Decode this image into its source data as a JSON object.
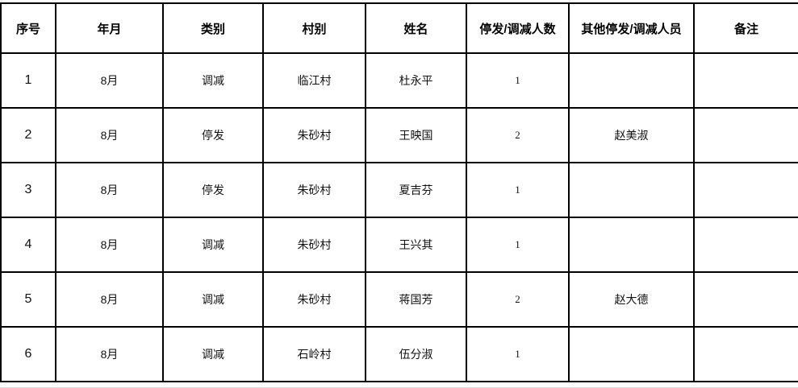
{
  "table": {
    "columns": [
      {
        "key": "seq",
        "label": "序号"
      },
      {
        "key": "month",
        "label": "年月"
      },
      {
        "key": "category",
        "label": "类别"
      },
      {
        "key": "village",
        "label": "村别"
      },
      {
        "key": "name",
        "label": "姓名"
      },
      {
        "key": "count",
        "label": "停发/调减人数"
      },
      {
        "key": "others",
        "label": "其他停发/调减人员"
      },
      {
        "key": "remark",
        "label": "备注"
      }
    ],
    "rows": [
      {
        "seq": "1",
        "month": "8月",
        "category": "调减",
        "village": "临江村",
        "name": "杜永平",
        "count": "1",
        "others": "",
        "remark": ""
      },
      {
        "seq": "2",
        "month": "8月",
        "category": "停发",
        "village": "朱砂村",
        "name": "王映国",
        "count": "2",
        "others": "赵美淑",
        "remark": ""
      },
      {
        "seq": "3",
        "month": "8月",
        "category": "停发",
        "village": "朱砂村",
        "name": "夏吉芬",
        "count": "1",
        "others": "",
        "remark": ""
      },
      {
        "seq": "4",
        "month": "8月",
        "category": "调减",
        "village": "朱砂村",
        "name": "王兴其",
        "count": "1",
        "others": "",
        "remark": ""
      },
      {
        "seq": "5",
        "month": "8月",
        "category": "调减",
        "village": "朱砂村",
        "name": "蒋国芳",
        "count": "2",
        "others": "赵大德",
        "remark": ""
      },
      {
        "seq": "6",
        "month": "8月",
        "category": "调减",
        "village": "石岭村",
        "name": "伍分淑",
        "count": "1",
        "others": "",
        "remark": ""
      }
    ]
  },
  "colors": {
    "border": "#000000",
    "text": "#111111",
    "header_text": "#000000",
    "background": "#ffffff",
    "faint_gridline": "#d9d9d9"
  }
}
